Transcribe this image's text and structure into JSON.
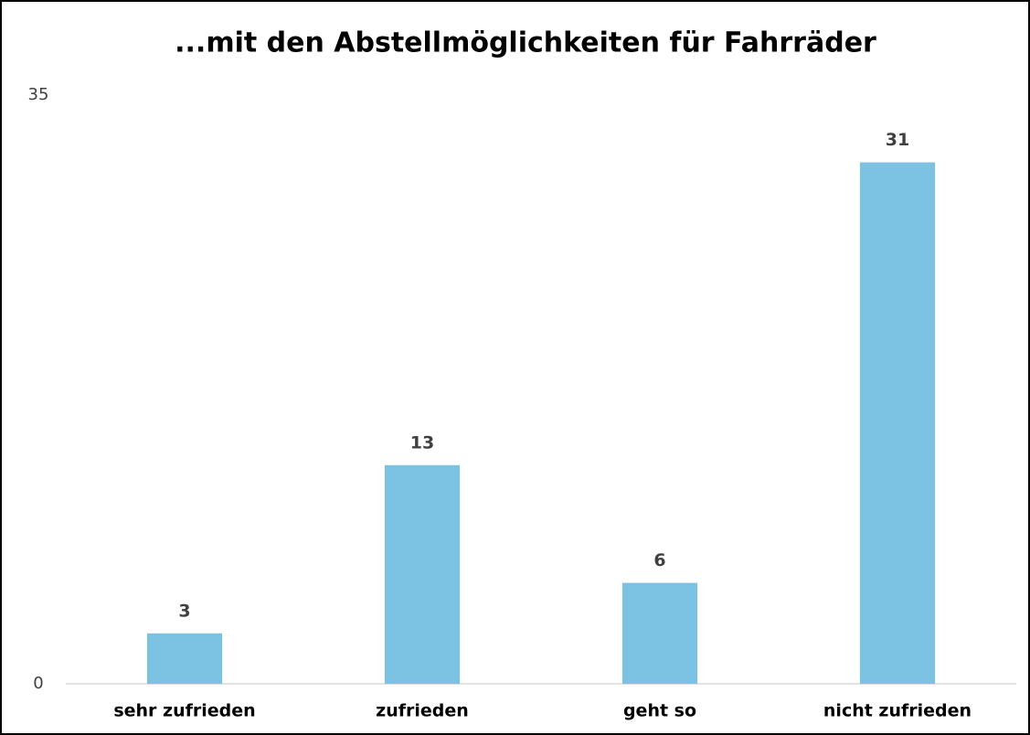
{
  "chart_data": {
    "type": "bar",
    "title": "...mit den Abstellmöglichkeiten für Fahrräder",
    "categories": [
      "sehr zufrieden",
      "zufrieden",
      "geht so",
      "nicht zufrieden"
    ],
    "values": [
      3,
      13,
      6,
      31
    ],
    "color": "#7cc2e3",
    "ylim": [
      0,
      35
    ],
    "yticks": [
      0,
      35
    ]
  }
}
